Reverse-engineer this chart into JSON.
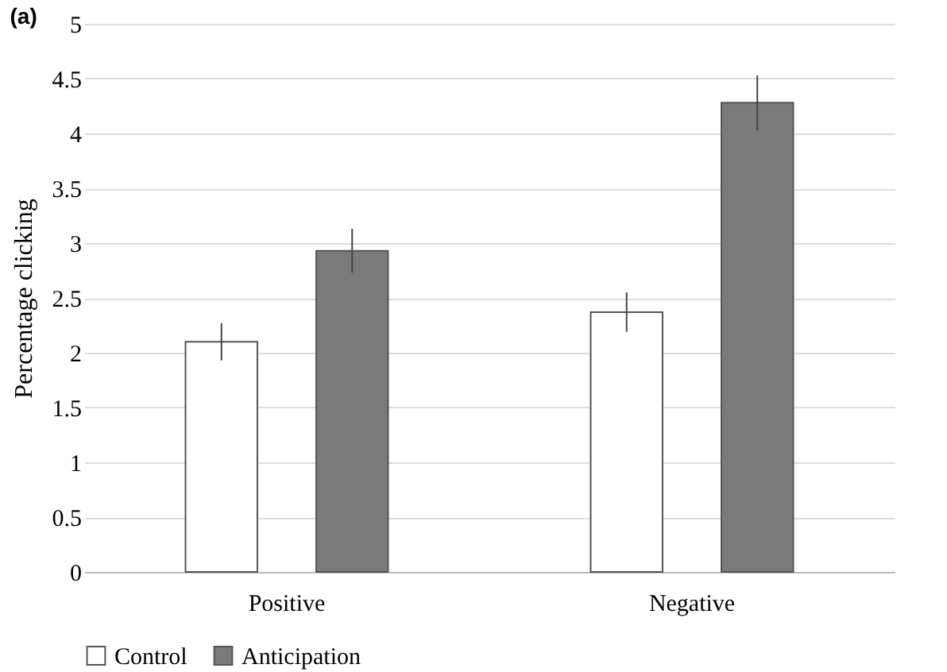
{
  "chart_data": {
    "type": "bar",
    "title": "(a)",
    "ylabel": "Percentage clicking",
    "categories": [
      "Positive",
      "Negative"
    ],
    "series": [
      {
        "name": "Control",
        "color": "#ffffff",
        "values": [
          2.1,
          2.37
        ],
        "errors": [
          0.17,
          0.18
        ]
      },
      {
        "name": "Anticipation",
        "color": "#7a7a7a",
        "values": [
          2.93,
          4.28
        ],
        "errors": [
          0.2,
          0.25
        ]
      }
    ],
    "ylim": [
      0,
      5
    ],
    "yticks": [
      0,
      0.5,
      1,
      1.5,
      2,
      2.5,
      3,
      3.5,
      4,
      4.5,
      5
    ],
    "grid": "y",
    "legend": "bottom"
  }
}
